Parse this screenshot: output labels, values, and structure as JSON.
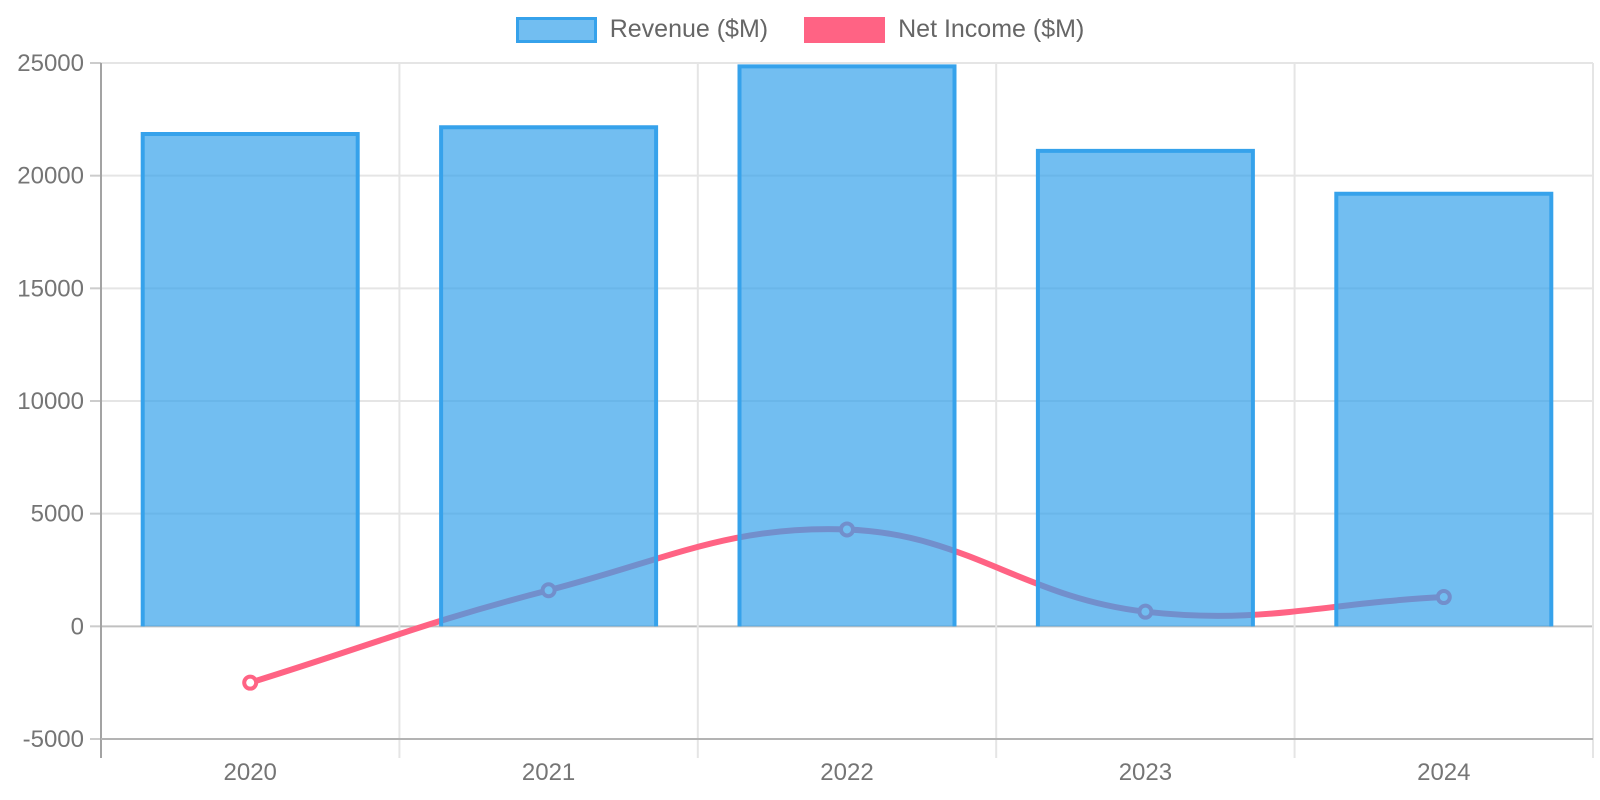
{
  "chart_data": {
    "type": "combo",
    "title": "",
    "xlabel": "",
    "ylabel": "",
    "categories": [
      "2020",
      "2021",
      "2022",
      "2023",
      "2024"
    ],
    "series": [
      {
        "name": "Revenue ($M)",
        "type": "bar",
        "values": [
          21850,
          22150,
          24850,
          21100,
          19200
        ],
        "fill_color": "rgba(54,162,235,0.7)",
        "border_color": "#36a2eb"
      },
      {
        "name": "Net Income ($M)",
        "type": "line",
        "values": [
          -2500,
          1600,
          4300,
          650,
          1300
        ],
        "line_color": "#ff6384",
        "point_fill": "#ffffff"
      }
    ],
    "ylim": [
      -5000,
      25000
    ],
    "yticks": [
      25000,
      20000,
      15000,
      10000,
      5000,
      0,
      -5000
    ],
    "grid": true,
    "legend_position": "top",
    "line_tension": 0.4,
    "colors": {
      "gridline": "#e5e5e5",
      "zero_line": "#c0c0c0",
      "axis_line": "#a3a3a3",
      "bottom_border": "#b3b3b3",
      "tick_mark": "#cccccc",
      "axis_text": "#757575",
      "legend_text": "#666666"
    }
  }
}
